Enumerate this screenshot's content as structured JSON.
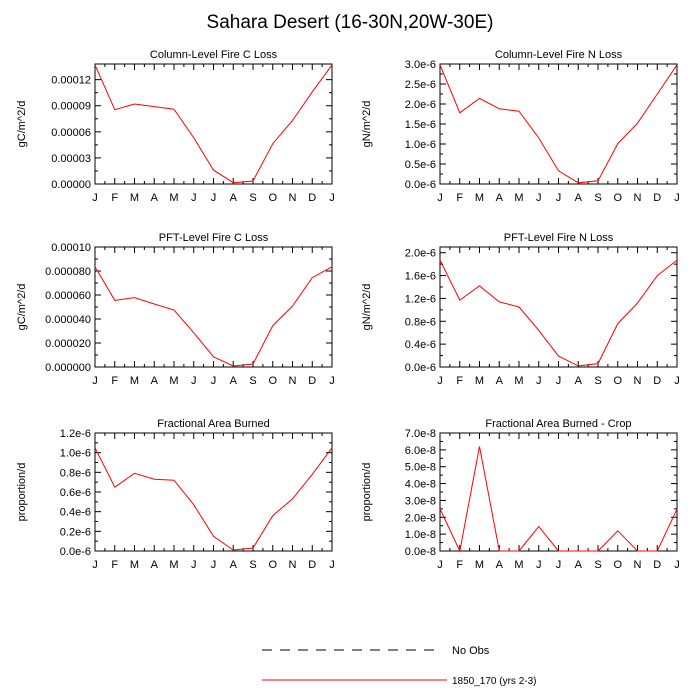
{
  "page": {
    "title": "Sahara Desert (16-30N,20W-30E)"
  },
  "legend": [
    {
      "label": "No Obs",
      "style": "dashed",
      "color": "#000000"
    },
    {
      "label": "1850_170 (yrs 2-3)",
      "style": "solid",
      "color": "#ff0000"
    }
  ],
  "chart_data": [
    {
      "type": "line",
      "title": "Column-Level Fire C Loss",
      "ylabel": "gC/m^2/d",
      "categories": [
        "J",
        "F",
        "M",
        "A",
        "M",
        "J",
        "J",
        "A",
        "S",
        "O",
        "N",
        "D",
        "J"
      ],
      "ylim": [
        0,
        0.000138
      ],
      "yticks": [
        0,
        3e-05,
        6e-05,
        9e-05,
        0.00012
      ],
      "yticklabels": [
        "0.00000",
        "0.00003",
        "0.00006",
        "0.00009",
        "0.00012"
      ],
      "series": [
        {
          "color": "#ff0000",
          "values": [
            0.000137,
            8.55e-05,
            9.2e-05,
            8.9e-05,
            8.6e-05,
            5.3e-05,
            1.6e-05,
            1.5e-06,
            3.5e-06,
            4.65e-05,
            7.3e-05,
            0.000106,
            0.000137
          ]
        }
      ]
    },
    {
      "type": "line",
      "title": "Column-Level Fire N Loss",
      "ylabel": "gN/m^2/d",
      "categories": [
        "J",
        "F",
        "M",
        "A",
        "M",
        "J",
        "J",
        "A",
        "S",
        "O",
        "N",
        "D",
        "J"
      ],
      "ylim": [
        0,
        3e-06
      ],
      "yticks": [
        0,
        5e-07,
        1e-06,
        1.5e-06,
        2e-06,
        2.5e-06,
        3e-06
      ],
      "yticklabels": [
        "0.0e-6",
        "0.5e-6",
        "1.0e-6",
        "1.5e-6",
        "2.0e-6",
        "2.5e-6",
        "3.0e-6"
      ],
      "series": [
        {
          "color": "#ff0000",
          "values": [
            2.98e-06,
            1.78e-06,
            2.14e-06,
            1.88e-06,
            1.82e-06,
            1.15e-06,
            3.3e-07,
            3e-08,
            8e-08,
            1.01e-06,
            1.52e-06,
            2.25e-06,
            2.98e-06
          ]
        }
      ]
    },
    {
      "type": "line",
      "title": "PFT-Level Fire C Loss",
      "ylabel": "gC/m^2/d",
      "categories": [
        "J",
        "F",
        "M",
        "A",
        "M",
        "J",
        "J",
        "A",
        "S",
        "O",
        "N",
        "D",
        "J"
      ],
      "ylim": [
        0,
        0.0001
      ],
      "yticks": [
        0,
        2e-05,
        4e-05,
        6e-05,
        8e-05,
        0.0001
      ],
      "yticklabels": [
        "0.000000",
        "0.000020",
        "0.000040",
        "0.000060",
        "0.000080",
        "0.00010"
      ],
      "series": [
        {
          "color": "#ff0000",
          "values": [
            8.35e-05,
            5.55e-05,
            5.78e-05,
            5.25e-05,
            4.75e-05,
            2.85e-05,
            8.5e-06,
            8e-07,
            2.5e-06,
            3.45e-05,
            5.08e-05,
            7.45e-05,
            8.35e-05
          ]
        }
      ]
    },
    {
      "type": "line",
      "title": "PFT-Level Fire N Loss",
      "ylabel": "gN/m^2/d",
      "categories": [
        "J",
        "F",
        "M",
        "A",
        "M",
        "J",
        "J",
        "A",
        "S",
        "O",
        "N",
        "D",
        "J"
      ],
      "ylim": [
        0,
        2.1e-06
      ],
      "yticks": [
        0,
        4e-07,
        8e-07,
        1.2e-06,
        1.6e-06,
        2e-06
      ],
      "yticklabels": [
        "0.0e-6",
        "0.4e-6",
        "0.8e-6",
        "1.2e-6",
        "1.6e-6",
        "2.0e-6"
      ],
      "series": [
        {
          "color": "#ff0000",
          "values": [
            1.87e-06,
            1.17e-06,
            1.42e-06,
            1.14e-06,
            1.05e-06,
            6.4e-07,
            1.9e-07,
            2e-08,
            6e-08,
            7.6e-07,
            1.12e-06,
            1.6e-06,
            1.87e-06
          ]
        }
      ]
    },
    {
      "type": "line",
      "title": "Fractional Area Burned",
      "ylabel": "proportion/d",
      "categories": [
        "J",
        "F",
        "M",
        "A",
        "M",
        "J",
        "J",
        "A",
        "S",
        "O",
        "N",
        "D",
        "J"
      ],
      "ylim": [
        0,
        1.2e-06
      ],
      "yticks": [
        0,
        2e-07,
        4e-07,
        6e-07,
        8e-07,
        1e-06,
        1.2e-06
      ],
      "yticklabels": [
        "0.0e-6",
        "0.2e-6",
        "0.4e-6",
        "0.6e-6",
        "0.8e-6",
        "1.0e-6",
        "1.2e-6"
      ],
      "series": [
        {
          "color": "#ff0000",
          "values": [
            1.05e-06,
            6.5e-07,
            7.9e-07,
            7.3e-07,
            7.2e-07,
            4.7e-07,
            1.5e-07,
            1e-08,
            3e-08,
            3.6e-07,
            5.3e-07,
            7.8e-07,
            1.05e-06
          ]
        }
      ]
    },
    {
      "type": "line",
      "title": "Fractional Area Burned - Crop",
      "ylabel": "proportion/d",
      "categories": [
        "J",
        "F",
        "M",
        "A",
        "M",
        "J",
        "J",
        "A",
        "S",
        "O",
        "N",
        "D",
        "J"
      ],
      "ylim": [
        0,
        7e-08
      ],
      "yticks": [
        0,
        1e-08,
        2e-08,
        3e-08,
        4e-08,
        5e-08,
        6e-08,
        7e-08
      ],
      "yticklabels": [
        "0.0e-8",
        "1.0e-8",
        "2.0e-8",
        "3.0e-8",
        "4.0e-8",
        "5.0e-8",
        "6.0e-8",
        "7.0e-8"
      ],
      "series": [
        {
          "color": "#ff0000",
          "values": [
            2.5e-08,
            0,
            6.2e-08,
            0,
            0,
            1.45e-08,
            0,
            0,
            0,
            1.2e-08,
            0,
            0,
            2.5e-08
          ]
        }
      ]
    }
  ]
}
